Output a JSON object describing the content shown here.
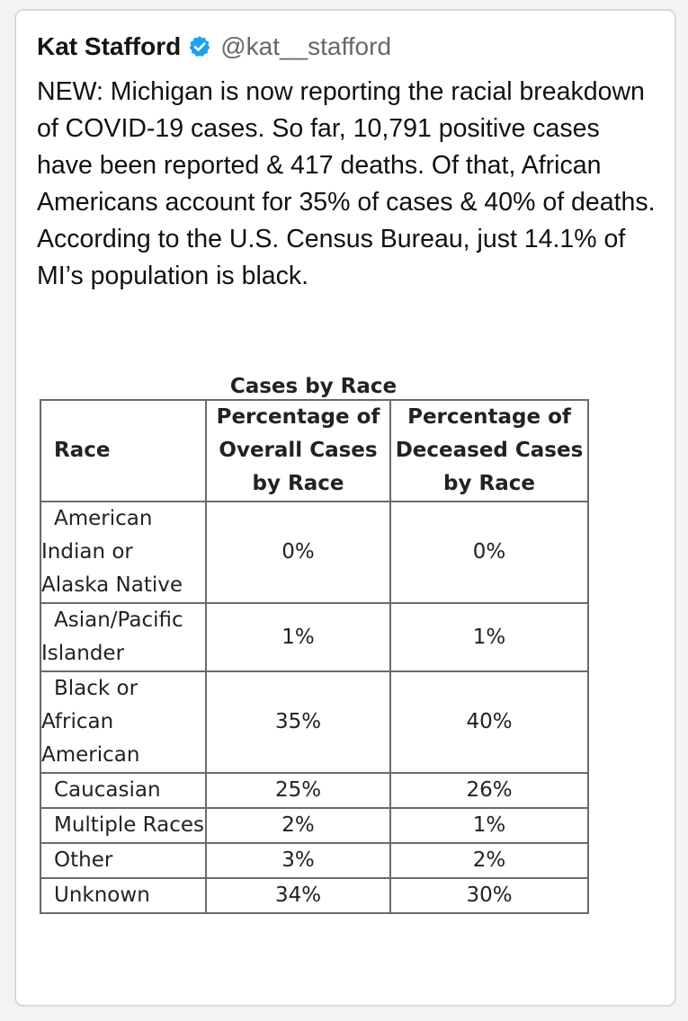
{
  "tweet": {
    "author_name": "Kat Stafford",
    "handle": "@kat__stafford",
    "verified_icon": "verified-badge-icon",
    "verified_color": "#1da1f2",
    "text": "NEW: Michigan is now reporting the racial breakdown of COVID-19 cases. So far, 10,791 positive cases have been reported & 417 deaths. Of that, African Americans account for 35% of cases & 40% of deaths. According to the U.S. Census Bureau, just 14.1% of MI’s population is black."
  },
  "table": {
    "title": "Cases by Race",
    "headers": {
      "race": "Race",
      "overall": "Percentage of Overall Cases by Race",
      "deceased": "Percentage of Deceased Cases by Race"
    },
    "rows": [
      {
        "race": "American Indian or Alaska Native",
        "overall": "0%",
        "deceased": "0%"
      },
      {
        "race": "Asian/Pacific Islander",
        "overall": "1%",
        "deceased": "1%"
      },
      {
        "race": "Black or African American",
        "overall": "35%",
        "deceased": "40%"
      },
      {
        "race": "Caucasian",
        "overall": "25%",
        "deceased": "26%"
      },
      {
        "race": "Multiple Races",
        "overall": "2%",
        "deceased": "1%"
      },
      {
        "race": "Other",
        "overall": "3%",
        "deceased": "2%"
      },
      {
        "race": "Unknown",
        "overall": "34%",
        "deceased": "30%"
      }
    ]
  }
}
